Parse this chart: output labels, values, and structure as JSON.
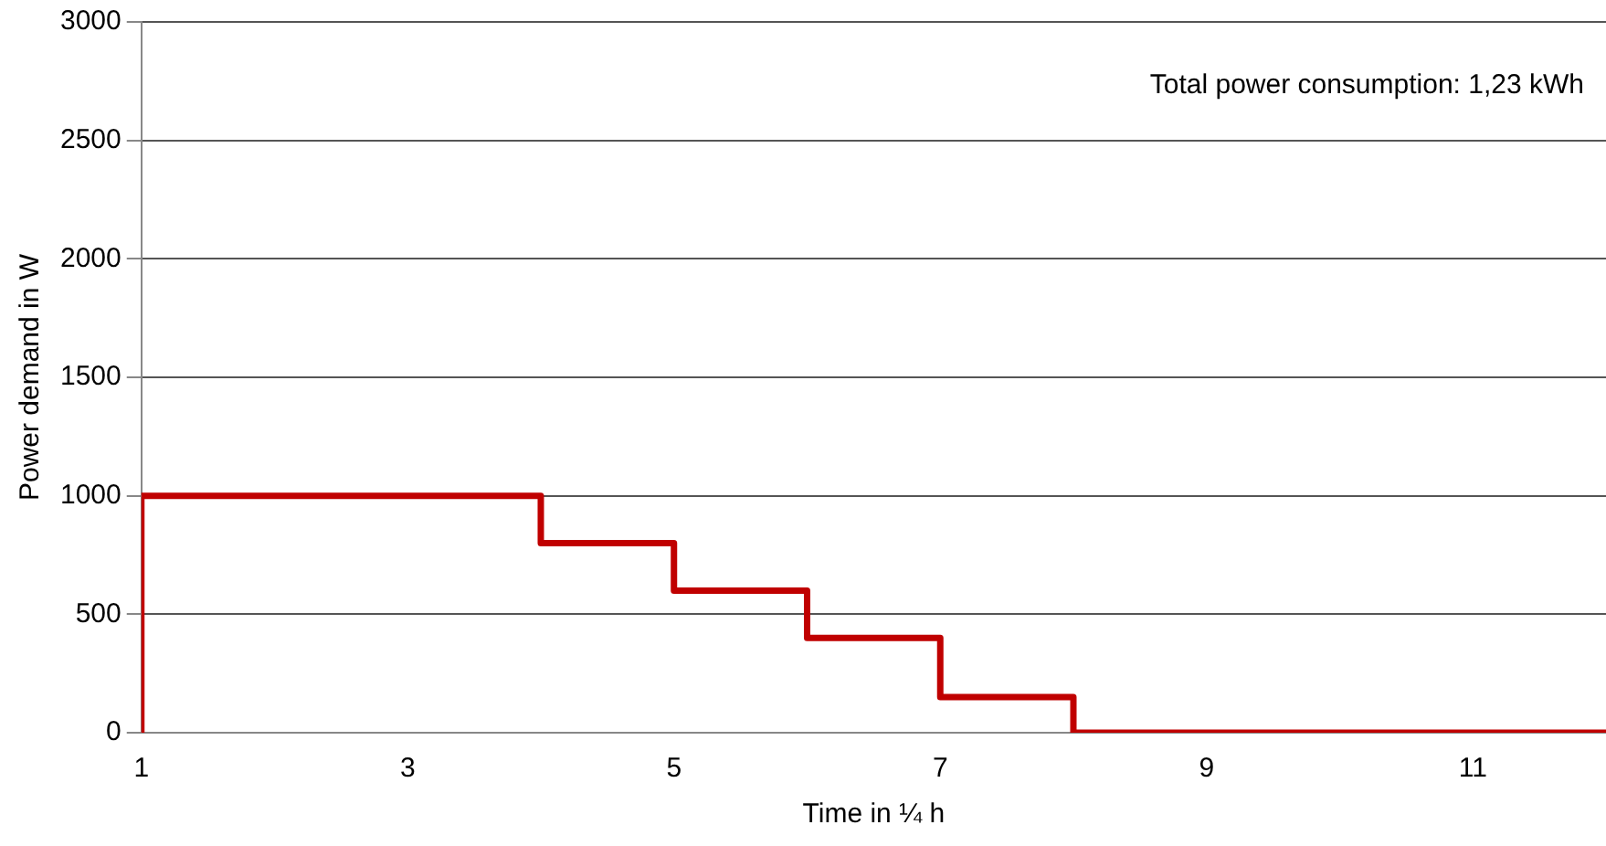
{
  "chart_data": {
    "type": "step",
    "xlabel": "Time in ¼ h",
    "ylabel": "Power demand in W",
    "x": [
      1,
      1,
      4,
      5,
      6,
      7,
      8,
      12
    ],
    "series": [
      {
        "color": "#c00000",
        "values": [
          0,
          1000,
          800,
          600,
          400,
          150,
          0,
          0
        ]
      }
    ],
    "xlim": [
      1,
      12
    ],
    "xticks": [
      1,
      3,
      5,
      7,
      9,
      11
    ],
    "ylim": [
      0,
      3000
    ],
    "yticks": [
      0,
      500,
      1000,
      1500,
      2000,
      2500,
      3000
    ],
    "grid": "y",
    "legend": false,
    "marker": "none",
    "line_style": "solid",
    "annotations": [
      "Total power consumption: 1,23 kWh"
    ]
  }
}
